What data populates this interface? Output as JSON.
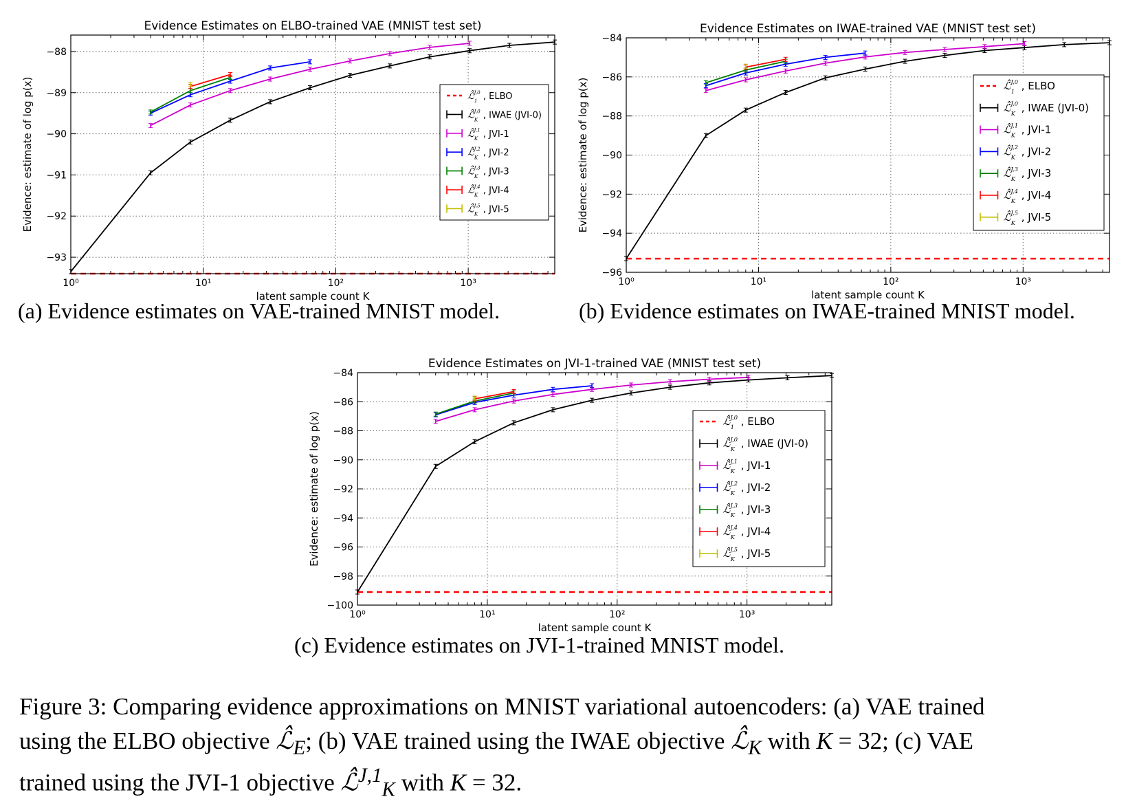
{
  "chart_data": [
    {
      "type": "line",
      "title": "Evidence Estimates on ELBO-trained VAE (MNIST test set)",
      "xlabel": "latent sample count K",
      "ylabel": "Evidence: estimate of log p(x)",
      "xscale": "log",
      "xlim": [
        1,
        4500
      ],
      "ylim": [
        -93.4,
        -87.6
      ],
      "xticks": [
        1,
        10,
        100,
        1000
      ],
      "xtick_labels": [
        "10⁰",
        "10¹",
        "10²",
        "10³"
      ],
      "yticks": [
        -93,
        -92,
        -91,
        -90,
        -89,
        -88
      ],
      "ytick_labels": [
        "−93",
        "−92",
        "−91",
        "−90",
        "−89",
        "−88"
      ],
      "grid": true,
      "legend_position": "right",
      "hline": {
        "name": "ELBO",
        "y": -93.4,
        "color": "#ff0000"
      },
      "series": [
        {
          "name": "IWAE (JVI-0)",
          "sup": "J,0",
          "color": "#000000",
          "x": [
            1,
            4,
            8,
            16,
            32,
            64,
            128,
            256,
            512,
            1024,
            2048,
            4500
          ],
          "y": [
            -93.35,
            -90.95,
            -90.2,
            -89.67,
            -89.22,
            -88.88,
            -88.58,
            -88.35,
            -88.13,
            -87.98,
            -87.85,
            -87.77
          ]
        },
        {
          "name": "JVI-1",
          "sup": "J,1",
          "color": "#cc00cc",
          "x": [
            4,
            8,
            16,
            32,
            64,
            128,
            256,
            512,
            1024
          ],
          "y": [
            -89.8,
            -89.3,
            -88.95,
            -88.67,
            -88.43,
            -88.23,
            -88.05,
            -87.9,
            -87.8
          ]
        },
        {
          "name": "JVI-2",
          "sup": "J,2",
          "color": "#0000ff",
          "x": [
            4,
            8,
            16,
            32,
            64
          ],
          "y": [
            -89.5,
            -89.05,
            -88.72,
            -88.4,
            -88.25
          ]
        },
        {
          "name": "JVI-3",
          "sup": "J,3",
          "color": "#008000",
          "x": [
            4,
            8,
            16
          ],
          "y": [
            -89.47,
            -88.95,
            -88.63
          ]
        },
        {
          "name": "JVI-4",
          "sup": "J,4",
          "color": "#ff0000",
          "x": [
            8,
            16
          ],
          "y": [
            -88.85,
            -88.56
          ]
        },
        {
          "name": "JVI-5",
          "sup": "J,5",
          "color": "#bfbf00",
          "x": [
            8
          ],
          "y": [
            -88.8
          ]
        }
      ],
      "legend_labels": [
        {
          "sym": "ℒ̂",
          "sub": "1",
          "sup": "J,0",
          "label": ", ELBO"
        },
        {
          "sym": "ℒ̂",
          "sub": "K",
          "sup": "J,0",
          "label": ", IWAE (JVI-0)"
        },
        {
          "sym": "ℒ̂",
          "sub": "K",
          "sup": "J,1",
          "label": ", JVI-1"
        },
        {
          "sym": "ℒ̂",
          "sub": "K",
          "sup": "J,2",
          "label": ", JVI-2"
        },
        {
          "sym": "ℒ̂",
          "sub": "K",
          "sup": "J,3",
          "label": ", JVI-3"
        },
        {
          "sym": "ℒ̂",
          "sub": "K",
          "sup": "J,4",
          "label": ", JVI-4"
        },
        {
          "sym": "ℒ̂",
          "sub": "K",
          "sup": "J,5",
          "label": ", JVI-5"
        }
      ]
    },
    {
      "type": "line",
      "title": "Evidence Estimates on IWAE-trained VAE (MNIST test set)",
      "xlabel": "latent sample count K",
      "ylabel": "Evidence: estimate of log p(x)",
      "xscale": "log",
      "xlim": [
        1,
        4500
      ],
      "ylim": [
        -96,
        -84
      ],
      "xticks": [
        1,
        10,
        100,
        1000
      ],
      "xtick_labels": [
        "10⁰",
        "10¹",
        "10²",
        "10³"
      ],
      "yticks": [
        -96,
        -94,
        -92,
        -90,
        -88,
        -86,
        -84
      ],
      "ytick_labels": [
        "−96",
        "−94",
        "−92",
        "−90",
        "−88",
        "−86",
        "−84"
      ],
      "grid": true,
      "legend_position": "right",
      "hline": {
        "name": "ELBO",
        "y": -95.3,
        "color": "#ff0000"
      },
      "series": [
        {
          "name": "IWAE (JVI-0)",
          "sup": "J,0",
          "color": "#000000",
          "x": [
            1,
            4,
            8,
            16,
            32,
            64,
            128,
            256,
            512,
            1024,
            2048,
            4500
          ],
          "y": [
            -95.3,
            -89.0,
            -87.7,
            -86.8,
            -86.05,
            -85.6,
            -85.2,
            -84.9,
            -84.65,
            -84.5,
            -84.35,
            -84.25
          ]
        },
        {
          "name": "JVI-1",
          "sup": "J,1",
          "color": "#cc00cc",
          "x": [
            4,
            8,
            16,
            32,
            64,
            128,
            256,
            512,
            1024
          ],
          "y": [
            -86.7,
            -86.15,
            -85.7,
            -85.3,
            -84.98,
            -84.75,
            -84.6,
            -84.45,
            -84.3
          ]
        },
        {
          "name": "JVI-2",
          "sup": "J,2",
          "color": "#0000ff",
          "x": [
            4,
            8,
            16,
            32,
            64
          ],
          "y": [
            -86.45,
            -85.8,
            -85.35,
            -85.0,
            -84.78
          ]
        },
        {
          "name": "JVI-3",
          "sup": "J,3",
          "color": "#008000",
          "x": [
            4,
            8,
            16
          ],
          "y": [
            -86.3,
            -85.65,
            -85.2
          ]
        },
        {
          "name": "JVI-4",
          "sup": "J,4",
          "color": "#ff0000",
          "x": [
            8,
            16
          ],
          "y": [
            -85.5,
            -85.1
          ]
        },
        {
          "name": "JVI-5",
          "sup": "J,5",
          "color": "#bfbf00",
          "x": [
            8
          ],
          "y": [
            -85.45
          ]
        }
      ],
      "legend_labels": [
        {
          "sym": "ℒ̂",
          "sub": "1",
          "sup": "J,0",
          "label": ", ELBO"
        },
        {
          "sym": "ℒ̂",
          "sub": "K",
          "sup": "J,0",
          "label": ", IWAE (JVI-0)"
        },
        {
          "sym": "ℒ̂",
          "sub": "K",
          "sup": "J,1",
          "label": ", JVI-1"
        },
        {
          "sym": "ℒ̂",
          "sub": "K",
          "sup": "J,2",
          "label": ", JVI-2"
        },
        {
          "sym": "ℒ̂",
          "sub": "K",
          "sup": "J,3",
          "label": ", JVI-3"
        },
        {
          "sym": "ℒ̂",
          "sub": "K",
          "sup": "J,4",
          "label": ", JVI-4"
        },
        {
          "sym": "ℒ̂",
          "sub": "K",
          "sup": "J,5",
          "label": ", JVI-5"
        }
      ]
    },
    {
      "type": "line",
      "title": "Evidence Estimates on JVI-1-trained VAE (MNIST test set)",
      "xlabel": "latent sample count K",
      "ylabel": "Evidence: estimate of log p(x)",
      "xscale": "log",
      "xlim": [
        1,
        4500
      ],
      "ylim": [
        -100,
        -84
      ],
      "xticks": [
        1,
        10,
        100,
        1000
      ],
      "xtick_labels": [
        "10⁰",
        "10¹",
        "10²",
        "10³"
      ],
      "yticks": [
        -100,
        -98,
        -96,
        -94,
        -92,
        -90,
        -88,
        -86,
        -84
      ],
      "ytick_labels": [
        "−100",
        "−98",
        "−96",
        "−94",
        "−92",
        "−90",
        "−88",
        "−86",
        "−84"
      ],
      "grid": true,
      "legend_position": "right",
      "hline": {
        "name": "ELBO",
        "y": -99.1,
        "color": "#ff0000"
      },
      "series": [
        {
          "name": "IWAE (JVI-0)",
          "sup": "J,0",
          "color": "#000000",
          "x": [
            1,
            4,
            8,
            16,
            32,
            64,
            128,
            256,
            512,
            1024,
            2048,
            4500
          ],
          "y": [
            -99.1,
            -90.45,
            -88.75,
            -87.45,
            -86.55,
            -85.9,
            -85.4,
            -85.0,
            -84.7,
            -84.5,
            -84.35,
            -84.2
          ]
        },
        {
          "name": "JVI-1",
          "sup": "J,1",
          "color": "#cc00cc",
          "x": [
            4,
            8,
            16,
            32,
            64,
            128,
            256,
            512,
            1024
          ],
          "y": [
            -87.35,
            -86.55,
            -85.95,
            -85.5,
            -85.15,
            -84.85,
            -84.62,
            -84.45,
            -84.32
          ]
        },
        {
          "name": "JVI-2",
          "sup": "J,2",
          "color": "#0000ff",
          "x": [
            4,
            8,
            16,
            32,
            64
          ],
          "y": [
            -86.9,
            -86.05,
            -85.55,
            -85.15,
            -84.9
          ]
        },
        {
          "name": "JVI-3",
          "sup": "J,3",
          "color": "#008000",
          "x": [
            4,
            8,
            16
          ],
          "y": [
            -86.85,
            -85.95,
            -85.4
          ]
        },
        {
          "name": "JVI-4",
          "sup": "J,4",
          "color": "#ff0000",
          "x": [
            8,
            16
          ],
          "y": [
            -85.8,
            -85.3
          ]
        },
        {
          "name": "JVI-5",
          "sup": "J,5",
          "color": "#bfbf00",
          "x": [
            8
          ],
          "y": [
            -85.75
          ]
        }
      ],
      "legend_labels": [
        {
          "sym": "ℒ̂",
          "sub": "1",
          "sup": "J,0",
          "label": ", ELBO"
        },
        {
          "sym": "ℒ̂",
          "sub": "K",
          "sup": "J,0",
          "label": ", IWAE (JVI-0)"
        },
        {
          "sym": "ℒ̂",
          "sub": "K",
          "sup": "J,1",
          "label": ", JVI-1"
        },
        {
          "sym": "ℒ̂",
          "sub": "K",
          "sup": "J,2",
          "label": ", JVI-2"
        },
        {
          "sym": "ℒ̂",
          "sub": "K",
          "sup": "J,3",
          "label": ", JVI-3"
        },
        {
          "sym": "ℒ̂",
          "sub": "K",
          "sup": "J,4",
          "label": ", JVI-4"
        },
        {
          "sym": "ℒ̂",
          "sub": "K",
          "sup": "J,5",
          "label": ", JVI-5"
        }
      ]
    }
  ],
  "captions": {
    "a": "(a) Evidence estimates on VAE-trained MNIST model.",
    "b": "(b) Evidence estimates on IWAE-trained MNIST model.",
    "c": "(c) Evidence estimates on JVI-1-trained MNIST model."
  },
  "figure_caption": {
    "line1": "Figure 3: Comparing evidence approximations on MNIST variational autoencoders: (a) VAE trained",
    "line2_a": "using the ELBO objective ",
    "line2_m1": "ℒ̂",
    "line2_m1sub": "E",
    "line2_b": "; (b) VAE trained using the IWAE objective ",
    "line2_m2": "ℒ̂",
    "line2_m2sub": "K",
    "line2_c": " with ",
    "line2_k": "K",
    "line2_d": " = 32; (c) VAE",
    "line3_a": "trained using the JVI-1 objective ",
    "line3_m": "ℒ̂",
    "line3_msup": "J,1",
    "line3_msub": "K",
    "line3_b": " with ",
    "line3_k": "K",
    "line3_c": " = 32."
  }
}
